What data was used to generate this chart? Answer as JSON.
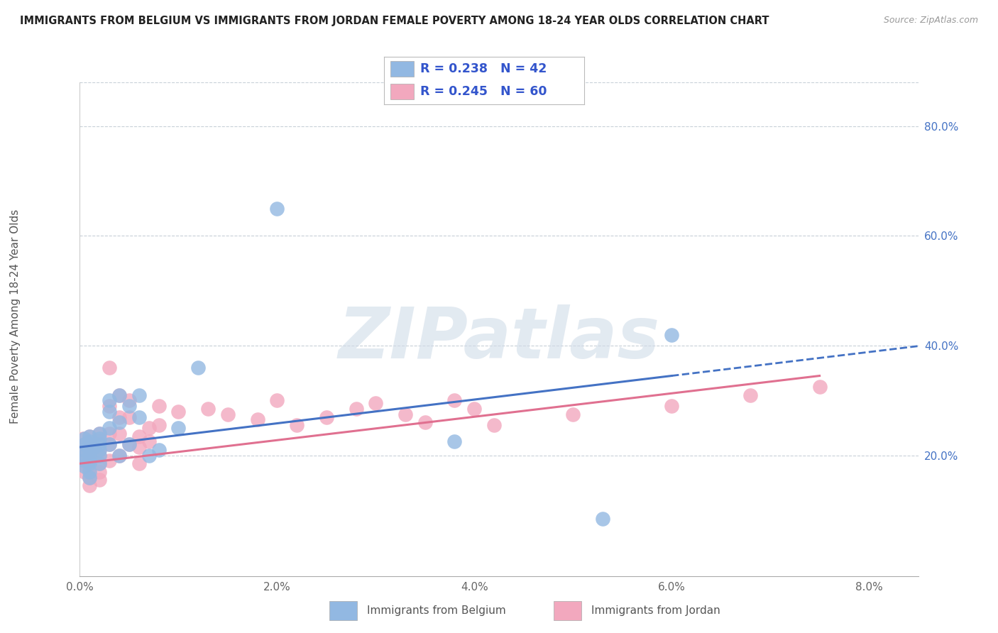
{
  "title": "IMMIGRANTS FROM BELGIUM VS IMMIGRANTS FROM JORDAN FEMALE POVERTY AMONG 18-24 YEAR OLDS CORRELATION CHART",
  "source": "Source: ZipAtlas.com",
  "ylabel": "Female Poverty Among 18-24 Year Olds",
  "yticks": [
    0.2,
    0.4,
    0.6,
    0.8
  ],
  "ytick_labels": [
    "20.0%",
    "40.0%",
    "60.0%",
    "80.0%"
  ],
  "xticks": [
    0.0,
    0.02,
    0.04,
    0.06,
    0.08
  ],
  "xtick_labels": [
    "0.0%",
    "2.0%",
    "4.0%",
    "6.0%",
    "8.0%"
  ],
  "xlim": [
    0.0,
    0.085
  ],
  "ylim": [
    -0.02,
    0.88
  ],
  "belgium_R": 0.238,
  "belgium_N": 42,
  "jordan_R": 0.245,
  "jordan_N": 60,
  "belgium_color": "#92b8e2",
  "jordan_color": "#f2a8be",
  "belgium_line_color": "#4472c4",
  "jordan_line_color": "#e07090",
  "legend_text_color": "#3355cc",
  "watermark": "ZIPatlas",
  "watermark_color": "#d0dce8",
  "belgium_x": [
    0.0005,
    0.0005,
    0.0005,
    0.0005,
    0.0005,
    0.0005,
    0.001,
    0.001,
    0.001,
    0.001,
    0.001,
    0.001,
    0.001,
    0.001,
    0.001,
    0.001,
    0.0015,
    0.002,
    0.002,
    0.002,
    0.002,
    0.002,
    0.002,
    0.003,
    0.003,
    0.003,
    0.003,
    0.004,
    0.004,
    0.004,
    0.005,
    0.005,
    0.006,
    0.006,
    0.007,
    0.008,
    0.01,
    0.012,
    0.02,
    0.038,
    0.053,
    0.06
  ],
  "belgium_y": [
    0.23,
    0.22,
    0.21,
    0.2,
    0.19,
    0.18,
    0.235,
    0.225,
    0.22,
    0.215,
    0.21,
    0.2,
    0.19,
    0.185,
    0.17,
    0.16,
    0.215,
    0.24,
    0.23,
    0.22,
    0.21,
    0.2,
    0.185,
    0.3,
    0.28,
    0.25,
    0.22,
    0.31,
    0.26,
    0.2,
    0.29,
    0.22,
    0.31,
    0.27,
    0.2,
    0.21,
    0.25,
    0.36,
    0.65,
    0.225,
    0.085,
    0.42
  ],
  "jordan_x": [
    0.0003,
    0.0003,
    0.0003,
    0.0005,
    0.0005,
    0.0005,
    0.0005,
    0.001,
    0.001,
    0.001,
    0.001,
    0.001,
    0.001,
    0.001,
    0.001,
    0.0015,
    0.002,
    0.002,
    0.002,
    0.002,
    0.002,
    0.002,
    0.002,
    0.003,
    0.003,
    0.003,
    0.003,
    0.003,
    0.004,
    0.004,
    0.004,
    0.004,
    0.005,
    0.005,
    0.005,
    0.006,
    0.006,
    0.006,
    0.007,
    0.007,
    0.008,
    0.008,
    0.01,
    0.013,
    0.015,
    0.018,
    0.02,
    0.022,
    0.025,
    0.028,
    0.03,
    0.033,
    0.035,
    0.038,
    0.04,
    0.042,
    0.05,
    0.06,
    0.068,
    0.075
  ],
  "jordan_y": [
    0.23,
    0.21,
    0.185,
    0.22,
    0.205,
    0.19,
    0.17,
    0.235,
    0.22,
    0.21,
    0.2,
    0.185,
    0.175,
    0.16,
    0.145,
    0.2,
    0.24,
    0.225,
    0.21,
    0.2,
    0.185,
    0.17,
    0.155,
    0.36,
    0.29,
    0.24,
    0.22,
    0.19,
    0.31,
    0.27,
    0.24,
    0.2,
    0.3,
    0.27,
    0.22,
    0.235,
    0.215,
    0.185,
    0.25,
    0.225,
    0.29,
    0.255,
    0.28,
    0.285,
    0.275,
    0.265,
    0.3,
    0.255,
    0.27,
    0.285,
    0.295,
    0.275,
    0.26,
    0.3,
    0.285,
    0.255,
    0.275,
    0.29,
    0.31,
    0.325
  ],
  "belgium_trend_x0": 0.0,
  "belgium_trend_y0": 0.215,
  "belgium_trend_x1": 0.06,
  "belgium_trend_y1": 0.345,
  "jordan_trend_x0": 0.0,
  "jordan_trend_y0": 0.185,
  "jordan_trend_x1": 0.075,
  "jordan_trend_y1": 0.345
}
